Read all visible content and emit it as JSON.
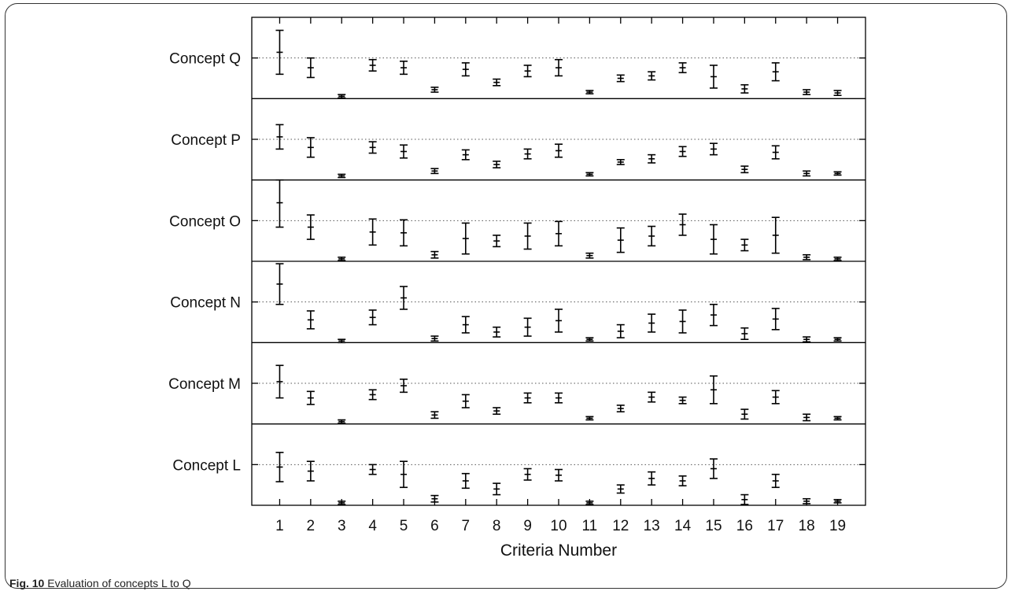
{
  "caption": {
    "label": "Fig. 10",
    "text": "Evaluation of concepts L to Q"
  },
  "chart_data": {
    "type": "scatter",
    "title": "",
    "xlabel": "Criteria Number",
    "ylabel": "",
    "x": [
      1,
      2,
      3,
      4,
      5,
      6,
      7,
      8,
      9,
      10,
      11,
      12,
      13,
      14,
      15,
      16,
      17,
      18,
      19
    ],
    "xlim": [
      0.1,
      19.9
    ],
    "row_ylim": [
      0,
      1
    ],
    "grid": "dotted horizontal line at each concept's reference level",
    "rows": [
      {
        "name": "Concept Q",
        "ref": 0.5,
        "mean": [
          0.57,
          0.38,
          0.03,
          0.41,
          0.38,
          0.11,
          0.36,
          0.2,
          0.34,
          0.38,
          0.08,
          0.25,
          0.28,
          0.38,
          0.27,
          0.12,
          0.33,
          0.08,
          0.07
        ],
        "err": [
          0.27,
          0.12,
          0.02,
          0.07,
          0.08,
          0.03,
          0.08,
          0.04,
          0.07,
          0.1,
          0.02,
          0.04,
          0.05,
          0.06,
          0.14,
          0.05,
          0.11,
          0.03,
          0.03
        ]
      },
      {
        "name": "Concept P",
        "ref": 0.5,
        "mean": [
          0.53,
          0.4,
          0.05,
          0.4,
          0.35,
          0.11,
          0.31,
          0.19,
          0.32,
          0.36,
          0.07,
          0.22,
          0.26,
          0.35,
          0.38,
          0.13,
          0.34,
          0.08,
          0.08
        ],
        "err": [
          0.15,
          0.12,
          0.02,
          0.07,
          0.08,
          0.03,
          0.06,
          0.04,
          0.06,
          0.08,
          0.02,
          0.03,
          0.05,
          0.06,
          0.07,
          0.04,
          0.08,
          0.03,
          0.02
        ]
      },
      {
        "name": "Concept O",
        "ref": 0.5,
        "mean": [
          0.72,
          0.42,
          0.03,
          0.36,
          0.35,
          0.08,
          0.28,
          0.25,
          0.31,
          0.34,
          0.07,
          0.26,
          0.31,
          0.45,
          0.27,
          0.2,
          0.32,
          0.05,
          0.03
        ],
        "err": [
          0.3,
          0.15,
          0.02,
          0.16,
          0.16,
          0.04,
          0.19,
          0.07,
          0.16,
          0.15,
          0.03,
          0.15,
          0.12,
          0.13,
          0.18,
          0.07,
          0.22,
          0.03,
          0.02
        ]
      },
      {
        "name": "Concept N",
        "ref": 0.5,
        "mean": [
          0.72,
          0.28,
          0.02,
          0.31,
          0.55,
          0.05,
          0.22,
          0.13,
          0.19,
          0.27,
          0.04,
          0.14,
          0.24,
          0.26,
          0.34,
          0.11,
          0.29,
          0.04,
          0.04
        ],
        "err": [
          0.25,
          0.11,
          0.02,
          0.09,
          0.14,
          0.03,
          0.1,
          0.06,
          0.11,
          0.14,
          0.02,
          0.08,
          0.11,
          0.14,
          0.13,
          0.07,
          0.13,
          0.03,
          0.02
        ]
      },
      {
        "name": "Concept M",
        "ref": 0.5,
        "mean": [
          0.52,
          0.32,
          0.03,
          0.36,
          0.47,
          0.11,
          0.28,
          0.16,
          0.32,
          0.32,
          0.07,
          0.19,
          0.33,
          0.29,
          0.42,
          0.12,
          0.33,
          0.08,
          0.07
        ],
        "err": [
          0.2,
          0.08,
          0.02,
          0.06,
          0.08,
          0.04,
          0.08,
          0.04,
          0.06,
          0.06,
          0.02,
          0.04,
          0.06,
          0.04,
          0.17,
          0.06,
          0.08,
          0.04,
          0.02
        ]
      },
      {
        "name": "Concept L",
        "ref": 0.5,
        "mean": [
          0.47,
          0.42,
          0.03,
          0.44,
          0.38,
          0.08,
          0.3,
          0.2,
          0.38,
          0.37,
          0.03,
          0.2,
          0.33,
          0.3,
          0.45,
          0.07,
          0.3,
          0.05,
          0.05
        ],
        "err": [
          0.18,
          0.12,
          0.02,
          0.06,
          0.16,
          0.04,
          0.09,
          0.07,
          0.07,
          0.07,
          0.02,
          0.05,
          0.08,
          0.06,
          0.12,
          0.06,
          0.08,
          0.03,
          0.02
        ]
      }
    ]
  }
}
